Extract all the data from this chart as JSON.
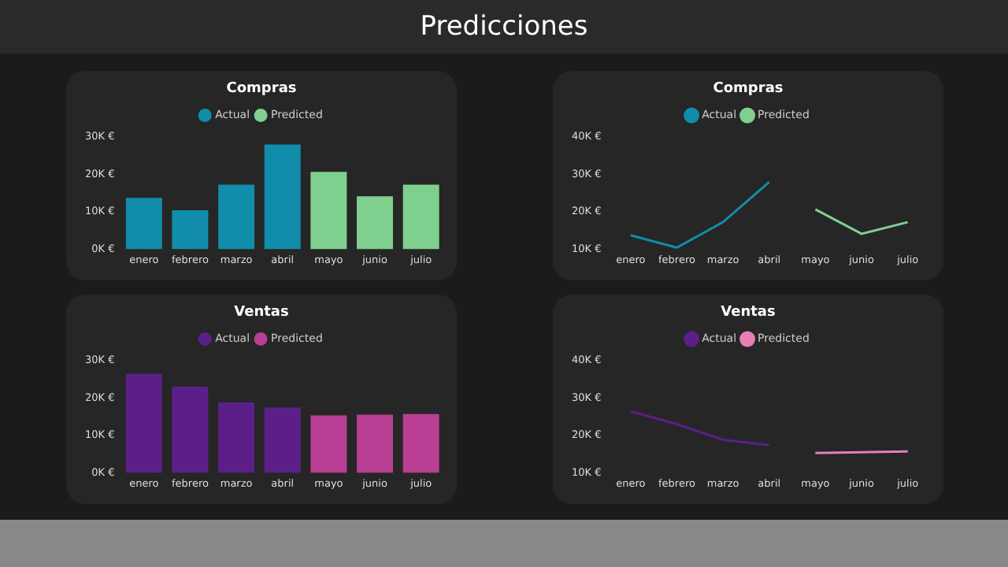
{
  "chart_data": [
    {
      "type": "other",
      "title": "Predicciones"
    },
    {
      "type": "bar",
      "title": "Compras",
      "categories": [
        "enero",
        "febrero",
        "marzo",
        "abril",
        "mayo",
        "junio",
        "julio"
      ],
      "series": [
        {
          "name": "Actual",
          "color": "#118dab",
          "values": [
            13700,
            10400,
            17200,
            27900,
            null,
            null,
            null
          ]
        },
        {
          "name": "Predicted",
          "color": "#7fd08f",
          "values": [
            null,
            null,
            null,
            null,
            20600,
            14100,
            17200
          ]
        }
      ],
      "ylim": [
        0,
        30000
      ],
      "yticks": [
        {
          "value": 0,
          "label": "0K €"
        },
        {
          "value": 10000,
          "label": "10K €"
        },
        {
          "value": 20000,
          "label": "20K €"
        },
        {
          "value": 30000,
          "label": "30K €"
        }
      ],
      "legend": "top"
    },
    {
      "type": "line",
      "title": "Compras",
      "categories": [
        "enero",
        "febrero",
        "marzo",
        "abril",
        "mayo",
        "junio",
        "julio"
      ],
      "series": [
        {
          "name": "Actual",
          "color": "#118dab",
          "values": [
            13700,
            10400,
            17200,
            27900,
            null,
            null,
            null
          ]
        },
        {
          "name": "Predicted",
          "color": "#7fd08f",
          "values": [
            null,
            null,
            null,
            null,
            20600,
            14100,
            17200
          ]
        }
      ],
      "ylim": [
        10000,
        40000
      ],
      "yticks": [
        {
          "value": 10000,
          "label": "10K €"
        },
        {
          "value": 20000,
          "label": "20K €"
        },
        {
          "value": 30000,
          "label": "30K €"
        },
        {
          "value": 40000,
          "label": "40K €"
        }
      ],
      "legend": "top",
      "marker": "none"
    },
    {
      "type": "bar",
      "title": "Ventas",
      "categories": [
        "enero",
        "febrero",
        "marzo",
        "abril",
        "mayo",
        "junio",
        "julio"
      ],
      "series": [
        {
          "name": "Actual",
          "color": "#5c1f8a",
          "values": [
            26400,
            23000,
            18800,
            17400,
            null,
            null,
            null
          ]
        },
        {
          "name": "Predicted",
          "color": "#b83f94",
          "values": [
            null,
            null,
            null,
            null,
            15300,
            15500,
            15700
          ]
        }
      ],
      "ylim": [
        0,
        30000
      ],
      "yticks": [
        {
          "value": 0,
          "label": "0K €"
        },
        {
          "value": 10000,
          "label": "10K €"
        },
        {
          "value": 20000,
          "label": "20K €"
        },
        {
          "value": 30000,
          "label": "30K €"
        }
      ],
      "legend": "top"
    },
    {
      "type": "line",
      "title": "Ventas",
      "categories": [
        "enero",
        "febrero",
        "marzo",
        "abril",
        "mayo",
        "junio",
        "julio"
      ],
      "series": [
        {
          "name": "Actual",
          "color": "#5c1f8a",
          "values": [
            26400,
            23000,
            18800,
            17400,
            null,
            null,
            null
          ]
        },
        {
          "name": "Predicted",
          "color": "#e87fb8",
          "values": [
            null,
            null,
            null,
            null,
            15300,
            15500,
            15700
          ]
        }
      ],
      "ylim": [
        10000,
        40000
      ],
      "yticks": [
        {
          "value": 10000,
          "label": "10K €"
        },
        {
          "value": 20000,
          "label": "20K €"
        },
        {
          "value": 30000,
          "label": "30K €"
        },
        {
          "value": 40000,
          "label": "40K €"
        }
      ],
      "legend": "top",
      "marker": "none"
    }
  ]
}
